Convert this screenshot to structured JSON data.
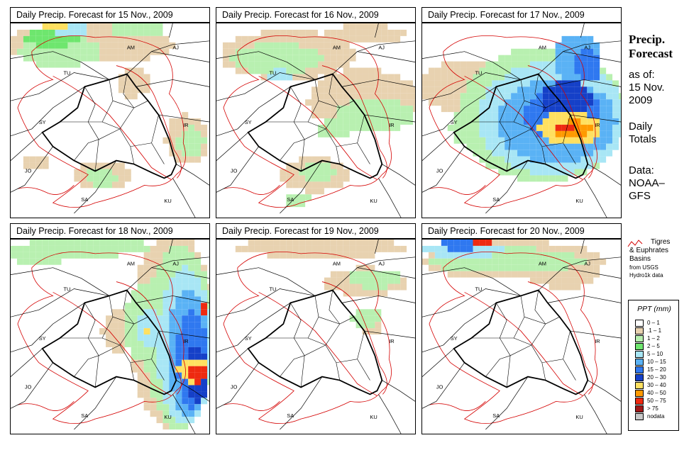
{
  "panels": [
    {
      "title": "Daily Precip. Forecast for  15 Nov., 2009"
    },
    {
      "title": "Daily Precip. Forecast for  16 Nov., 2009"
    },
    {
      "title": "Daily Precip. Forecast for  17 Nov., 2009"
    },
    {
      "title": "Daily Precip. Forecast for  18 Nov., 2009"
    },
    {
      "title": "Daily Precip. Forecast for  19 Nov., 2009"
    },
    {
      "title": "Daily Precip. Forecast for  20 Nov., 2009"
    }
  ],
  "map_labels": {
    "am": "AM",
    "aj": "AJ",
    "tu": "TU",
    "sy": "SY",
    "ir": "IR",
    "jo": "JO",
    "sa": "SA",
    "ku": "KU"
  },
  "sidebar": {
    "title_line1": "Precip.",
    "title_line2": "Forecast",
    "asof_line1": "as of:",
    "asof_line2": "15 Nov.",
    "asof_line3": "2009",
    "daily_line1": "Daily",
    "daily_line2": "Totals",
    "data_line1": "Data:",
    "data_line2": "NOAA–",
    "data_line3": "GFS"
  },
  "basin_legend": {
    "line1": "Tigres",
    "line2": "& Euphrates",
    "line3": "Basins",
    "line4": "from USGS",
    "line5": "Hydro1k data",
    "line_color": "#d40000"
  },
  "legend": {
    "title": "PPT (mm)",
    "classes": [
      {
        "label": "0 – 1",
        "color": "#ffffff"
      },
      {
        "label": ".1 – 1",
        "color": "#e8d2b0"
      },
      {
        "label": "1 – 2",
        "color": "#b8f0b0"
      },
      {
        "label": "2 – 5",
        "color": "#6ee66e"
      },
      {
        "label": "5 – 10",
        "color": "#a8e6f5"
      },
      {
        "label": "10 – 15",
        "color": "#5ab2f5"
      },
      {
        "label": "15 – 20",
        "color": "#2f78f0"
      },
      {
        "label": "20 – 30",
        "color": "#1540c8"
      },
      {
        "label": "30 – 40",
        "color": "#ffe060"
      },
      {
        "label": "40 – 50",
        "color": "#ff9a00"
      },
      {
        "label": "50 – 75",
        "color": "#ee2a10"
      },
      {
        "label": "> 75",
        "color": "#a01818"
      },
      {
        "label": "nodata",
        "color": "#c8c8c8"
      }
    ]
  }
}
